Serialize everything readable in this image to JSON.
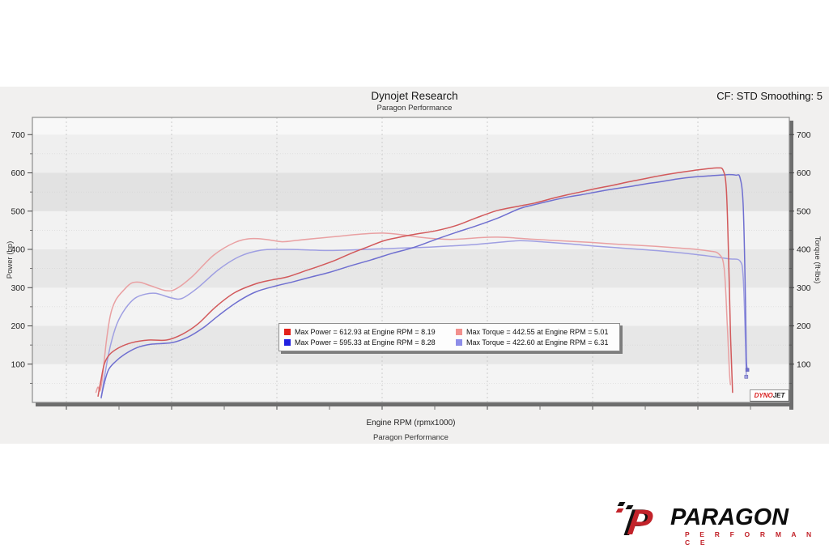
{
  "header": {
    "title": "Dynojet Research",
    "subtitle": "Paragon Performance",
    "cf_label": "CF: STD Smoothing: 5"
  },
  "footer": {
    "shop_name": "Paragon Performance"
  },
  "branding": {
    "dynojet_chip": {
      "part1": "DYNO",
      "part2": "JET",
      "color1": "#d81e1e",
      "color2": "#1a1a1a"
    },
    "paragon_logo": {
      "letter": "P",
      "name": "PARAGON",
      "tagline": "P E R F O R M A N C E",
      "red": "#c2232a",
      "black": "#0d0d0d"
    }
  },
  "chart_data": {
    "type": "line",
    "title": "Dynojet Research",
    "subtitle": "Paragon Performance",
    "xlabel": "Engine RPM (rpmx1000)",
    "ylabel_left": "Power (hp)",
    "ylabel_right": "Torque (ft-lbs)",
    "xlim": [
      1.677,
      8.869
    ],
    "ylim": [
      0,
      745
    ],
    "x_major_ticks": [
      2,
      3,
      4,
      5,
      6,
      7,
      8
    ],
    "x_minor_ticks": [
      2.5,
      3.5,
      4.5,
      5.5,
      6.5,
      7.5,
      8.5
    ],
    "y_major_ticks": [
      100,
      200,
      300,
      400,
      500,
      600,
      700
    ],
    "y_minor_ticks": [
      50,
      150,
      250,
      350,
      450,
      550,
      650
    ],
    "grid": {
      "vertical_dashed_at_majors": true,
      "horizontal_dotted_at_minors": true
    },
    "background_bands": [
      {
        "from": 0,
        "to": 100,
        "color": "#f4f4f4"
      },
      {
        "from": 100,
        "to": 200,
        "color": "#e7e7e7"
      },
      {
        "from": 200,
        "to": 300,
        "color": "#f3f3f3"
      },
      {
        "from": 300,
        "to": 400,
        "color": "#e7e7e7"
      },
      {
        "from": 400,
        "to": 500,
        "color": "#f2f2f2"
      },
      {
        "from": 500,
        "to": 600,
        "color": "#e2e2e2"
      },
      {
        "from": 600,
        "to": 700,
        "color": "#efefef"
      },
      {
        "from": 700,
        "to": 745,
        "color": "#f8f8f8"
      }
    ],
    "legend_position": "center",
    "legend": [
      {
        "color": "#e32119",
        "label": "Max Power = 612.93 at Engine RPM = 8.19"
      },
      {
        "color": "#f2908d",
        "label": "Max Torque = 442.55 at Engine RPM = 5.01"
      },
      {
        "color": "#1f1fe0",
        "label": "Max Power = 595.33 at Engine RPM = 8.28"
      },
      {
        "color": "#8d8de8",
        "label": "Max Torque = 422.60 at Engine RPM = 6.31"
      }
    ],
    "series": [
      {
        "name": "torque-run-2",
        "unit": "ft-lbs",
        "color": "#9f9fe2",
        "peak": {
          "value": 422.6,
          "rpm": 6.31
        },
        "end_marker": true,
        "points": [
          [
            2.33,
            10
          ],
          [
            2.37,
            80
          ],
          [
            2.42,
            150
          ],
          [
            2.48,
            205
          ],
          [
            2.56,
            245
          ],
          [
            2.65,
            272
          ],
          [
            2.75,
            283
          ],
          [
            2.85,
            285
          ],
          [
            3.0,
            273
          ],
          [
            3.1,
            272
          ],
          [
            3.25,
            300
          ],
          [
            3.45,
            348
          ],
          [
            3.65,
            382
          ],
          [
            3.85,
            398
          ],
          [
            4.05,
            400
          ],
          [
            4.25,
            399
          ],
          [
            4.45,
            397
          ],
          [
            4.65,
            398
          ],
          [
            4.85,
            400
          ],
          [
            5.05,
            402
          ],
          [
            5.25,
            404
          ],
          [
            5.45,
            406
          ],
          [
            5.65,
            409
          ],
          [
            5.85,
            412
          ],
          [
            6.05,
            417
          ],
          [
            6.31,
            422.6
          ],
          [
            6.55,
            419
          ],
          [
            6.8,
            414
          ],
          [
            7.05,
            408
          ],
          [
            7.3,
            403
          ],
          [
            7.55,
            398
          ],
          [
            7.8,
            392
          ],
          [
            8.0,
            386
          ],
          [
            8.15,
            381
          ],
          [
            8.3,
            375
          ],
          [
            8.4,
            370
          ],
          [
            8.43,
            330
          ],
          [
            8.45,
            180
          ],
          [
            8.46,
            67
          ]
        ]
      },
      {
        "name": "torque-run-1",
        "unit": "ft-lbs",
        "color": "#e9a0a2",
        "peak": {
          "value": 442.55,
          "rpm": 5.01
        },
        "end_marker": false,
        "points": [
          [
            2.28,
            25
          ],
          [
            2.3,
            40
          ],
          [
            2.32,
            30
          ],
          [
            2.34,
            60
          ],
          [
            2.38,
            160
          ],
          [
            2.42,
            230
          ],
          [
            2.47,
            268
          ],
          [
            2.55,
            295
          ],
          [
            2.62,
            312
          ],
          [
            2.7,
            314
          ],
          [
            2.8,
            305
          ],
          [
            2.95,
            292
          ],
          [
            3.05,
            298
          ],
          [
            3.2,
            330
          ],
          [
            3.4,
            385
          ],
          [
            3.6,
            418
          ],
          [
            3.75,
            428
          ],
          [
            3.9,
            426
          ],
          [
            4.05,
            420
          ],
          [
            4.2,
            424
          ],
          [
            4.35,
            428
          ],
          [
            4.5,
            432
          ],
          [
            4.65,
            436
          ],
          [
            4.8,
            440
          ],
          [
            5.01,
            442.55
          ],
          [
            5.2,
            438
          ],
          [
            5.35,
            432
          ],
          [
            5.5,
            428
          ],
          [
            5.65,
            426
          ],
          [
            5.8,
            428
          ],
          [
            5.95,
            431
          ],
          [
            6.1,
            432
          ],
          [
            6.25,
            430
          ],
          [
            6.4,
            427
          ],
          [
            6.6,
            424
          ],
          [
            6.8,
            421
          ],
          [
            7.0,
            418
          ],
          [
            7.2,
            414
          ],
          [
            7.4,
            411
          ],
          [
            7.6,
            408
          ],
          [
            7.8,
            404
          ],
          [
            7.95,
            401
          ],
          [
            8.1,
            396
          ],
          [
            8.2,
            388
          ],
          [
            8.25,
            350
          ],
          [
            8.28,
            200
          ],
          [
            8.3,
            80
          ],
          [
            8.31,
            45
          ]
        ]
      },
      {
        "name": "power-run-2",
        "unit": "hp",
        "color": "#6f6fd0",
        "peak": {
          "value": 595.33,
          "rpm": 8.28
        },
        "end_marker": true,
        "points": [
          [
            2.33,
            12
          ],
          [
            2.36,
            50
          ],
          [
            2.4,
            85
          ],
          [
            2.46,
            105
          ],
          [
            2.55,
            125
          ],
          [
            2.67,
            143
          ],
          [
            2.8,
            152
          ],
          [
            3.0,
            156
          ],
          [
            3.15,
            170
          ],
          [
            3.3,
            195
          ],
          [
            3.45,
            228
          ],
          [
            3.62,
            262
          ],
          [
            3.8,
            289
          ],
          [
            4.0,
            305
          ],
          [
            4.15,
            315
          ],
          [
            4.3,
            326
          ],
          [
            4.5,
            340
          ],
          [
            4.7,
            357
          ],
          [
            4.9,
            373
          ],
          [
            5.1,
            390
          ],
          [
            5.3,
            405
          ],
          [
            5.5,
            425
          ],
          [
            5.7,
            444
          ],
          [
            5.9,
            462
          ],
          [
            6.1,
            482
          ],
          [
            6.31,
            507
          ],
          [
            6.45,
            517
          ],
          [
            6.6,
            527
          ],
          [
            6.75,
            536
          ],
          [
            6.9,
            543
          ],
          [
            7.05,
            551
          ],
          [
            7.2,
            558
          ],
          [
            7.35,
            564
          ],
          [
            7.5,
            571
          ],
          [
            7.65,
            577
          ],
          [
            7.8,
            584
          ],
          [
            7.95,
            589
          ],
          [
            8.1,
            592
          ],
          [
            8.28,
            595.33
          ],
          [
            8.36,
            594
          ],
          [
            8.4,
            588
          ],
          [
            8.43,
            520
          ],
          [
            8.45,
            300
          ],
          [
            8.46,
            120
          ],
          [
            8.47,
            85
          ]
        ]
      },
      {
        "name": "power-run-1",
        "unit": "hp",
        "color": "#d2595b",
        "peak": {
          "value": 612.93,
          "rpm": 8.19
        },
        "end_marker": false,
        "points": [
          [
            2.3,
            15
          ],
          [
            2.33,
            60
          ],
          [
            2.36,
            100
          ],
          [
            2.41,
            125
          ],
          [
            2.5,
            143
          ],
          [
            2.62,
            156
          ],
          [
            2.78,
            163
          ],
          [
            2.95,
            163
          ],
          [
            3.1,
            178
          ],
          [
            3.25,
            205
          ],
          [
            3.42,
            250
          ],
          [
            3.6,
            287
          ],
          [
            3.8,
            310
          ],
          [
            3.95,
            320
          ],
          [
            4.1,
            328
          ],
          [
            4.25,
            342
          ],
          [
            4.4,
            356
          ],
          [
            4.55,
            371
          ],
          [
            4.7,
            389
          ],
          [
            4.85,
            405
          ],
          [
            5.01,
            422
          ],
          [
            5.15,
            431
          ],
          [
            5.3,
            439
          ],
          [
            5.5,
            448
          ],
          [
            5.7,
            462
          ],
          [
            5.9,
            483
          ],
          [
            6.1,
            502
          ],
          [
            6.3,
            513
          ],
          [
            6.45,
            521
          ],
          [
            6.6,
            532
          ],
          [
            6.75,
            542
          ],
          [
            6.9,
            551
          ],
          [
            7.05,
            560
          ],
          [
            7.2,
            568
          ],
          [
            7.35,
            577
          ],
          [
            7.5,
            585
          ],
          [
            7.65,
            593
          ],
          [
            7.8,
            600
          ],
          [
            7.95,
            606
          ],
          [
            8.1,
            611
          ],
          [
            8.19,
            612.93
          ],
          [
            8.24,
            607
          ],
          [
            8.27,
            560
          ],
          [
            8.29,
            400
          ],
          [
            8.31,
            180
          ],
          [
            8.33,
            25
          ]
        ]
      }
    ]
  }
}
